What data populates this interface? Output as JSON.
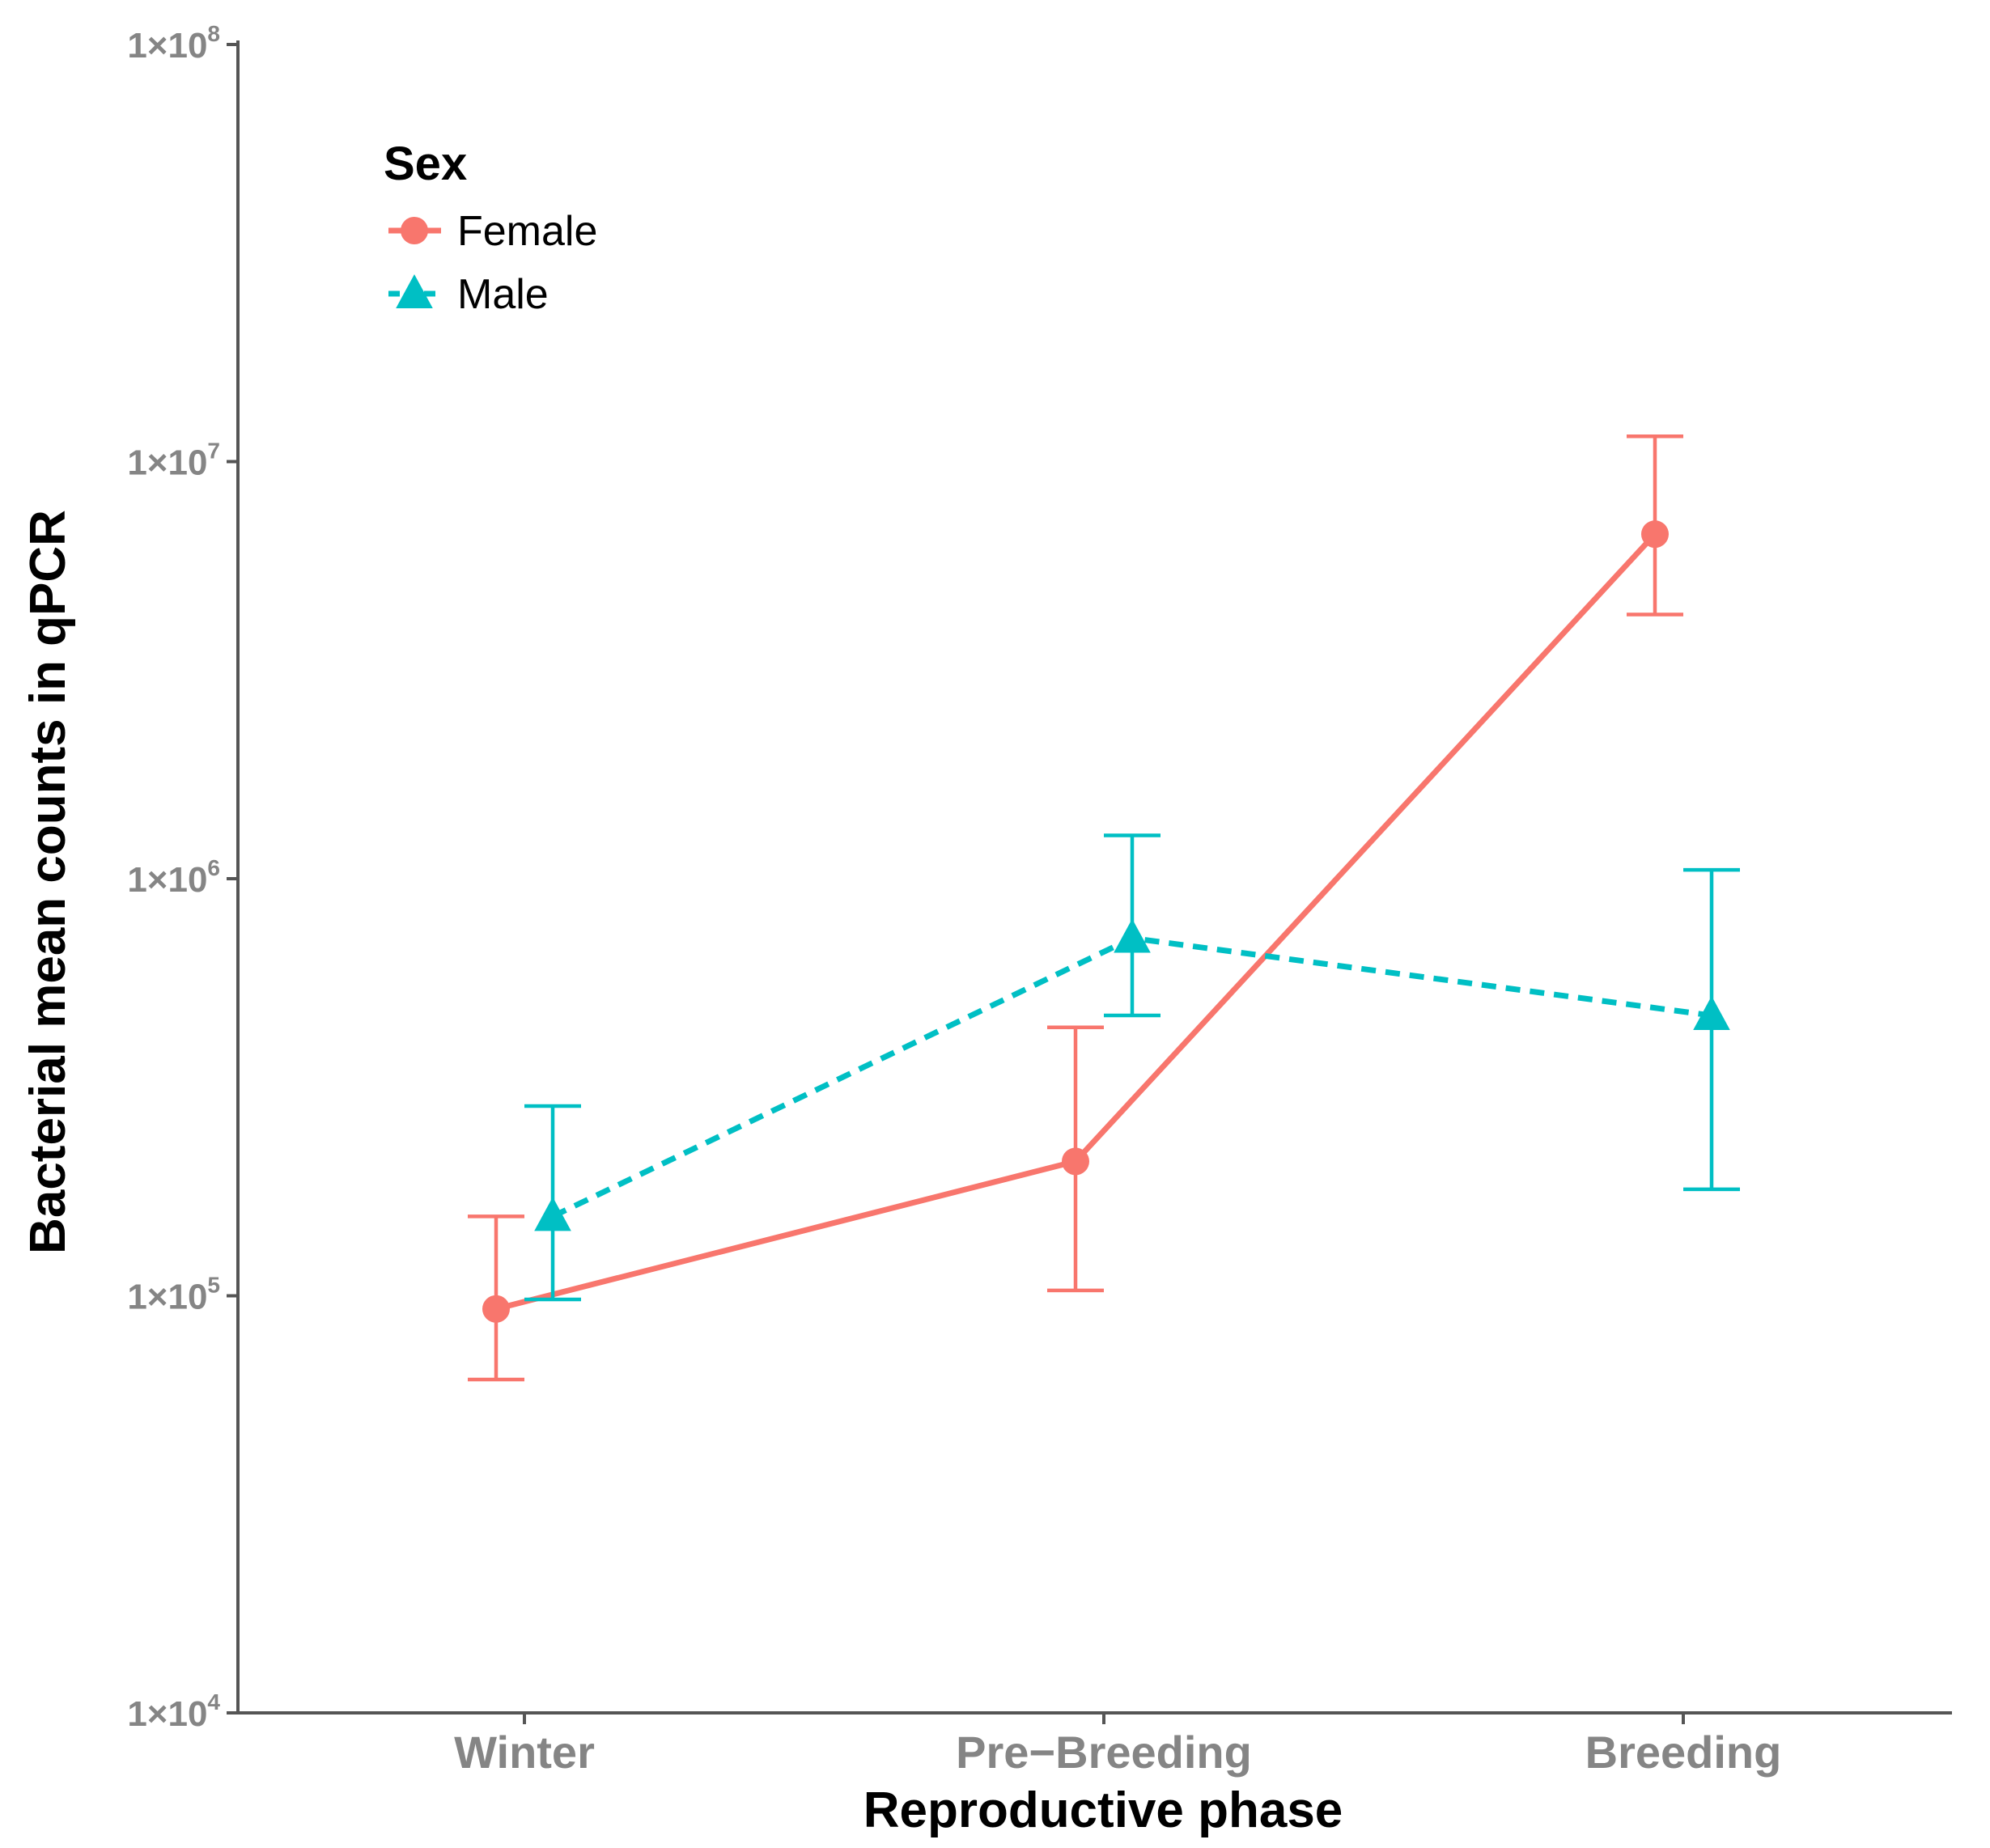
{
  "chart_data": {
    "type": "line",
    "title": "",
    "xlabel": "Reproductive phase",
    "ylabel": "Bacterial mean counts in qPCR",
    "y_scale": "log10",
    "ylim": [
      10000,
      100000000
    ],
    "y_ticks": [
      {
        "value": 10000,
        "mantissa": "1×10",
        "exponent": "4"
      },
      {
        "value": 100000,
        "mantissa": "1×10",
        "exponent": "5"
      },
      {
        "value": 1000000,
        "mantissa": "1×10",
        "exponent": "6"
      },
      {
        "value": 10000000,
        "mantissa": "1×10",
        "exponent": "7"
      },
      {
        "value": 100000000,
        "mantissa": "1×10",
        "exponent": "8"
      }
    ],
    "categories": [
      "Winter",
      "Pre−Breeding",
      "Breeding"
    ],
    "grid": false,
    "legend": {
      "title": "Sex",
      "placement": "top-left"
    },
    "series": [
      {
        "name": "Female",
        "color": "#F8766D",
        "marker": "circle",
        "line_style": "solid",
        "values": [
          93000,
          210000,
          6700000
        ],
        "lower": [
          63000,
          103000,
          4300000
        ],
        "upper": [
          155000,
          440000,
          11500000
        ]
      },
      {
        "name": "Male",
        "color": "#00BFC4",
        "marker": "triangle",
        "line_style": "dashed",
        "values": [
          155000,
          720000,
          470000
        ],
        "lower": [
          98000,
          470000,
          180000
        ],
        "upper": [
          285000,
          1270000,
          1050000
        ]
      }
    ]
  }
}
